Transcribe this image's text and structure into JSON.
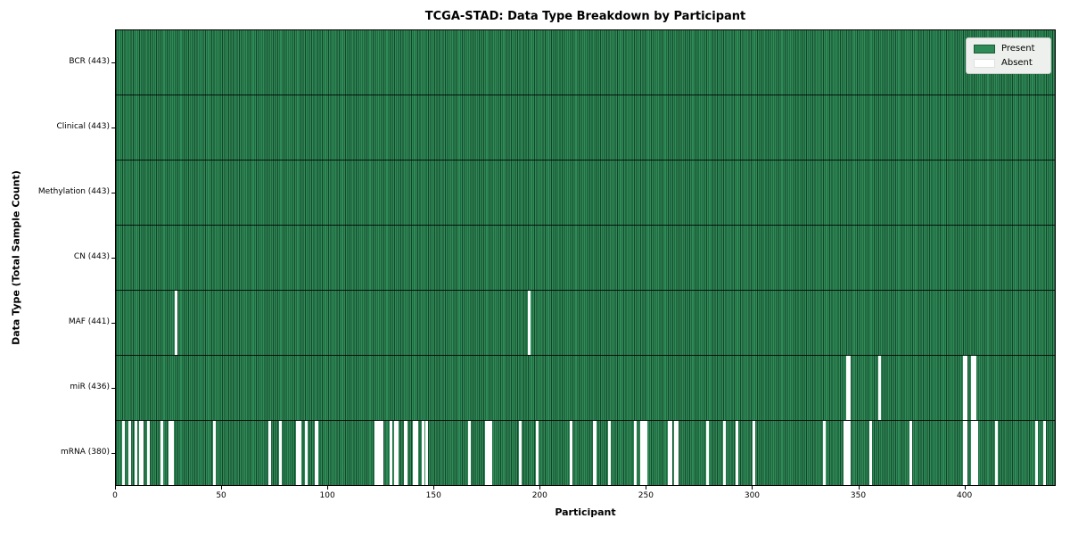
{
  "title": "TCGA-STAD: Data Type Breakdown by Participant",
  "legend": {
    "present_label": "Present",
    "absent_label": "Absent"
  },
  "colors": {
    "present": "#2e8b57",
    "absent": "#ffffff",
    "cell_edge": "rgba(0,0,0,0.5)",
    "row_border": "#000000",
    "plot_border": "#000000",
    "legend_bg": "#edf0ec",
    "text": "#000000"
  },
  "chart_data": {
    "type": "heatmap",
    "title": "TCGA-STAD: Data Type Breakdown by Participant",
    "xlabel": "Participant",
    "ylabel": "Data Type (Total Sample Count)",
    "x_range": [
      0,
      443
    ],
    "n_participants": 443,
    "x_ticks": [
      0,
      50,
      100,
      150,
      200,
      250,
      300,
      350,
      400
    ],
    "grid": false,
    "legend_position": "upper right",
    "legend_entries": [
      {
        "label": "Present",
        "color": "#2e8b57"
      },
      {
        "label": "Absent",
        "color": "#ffffff"
      }
    ],
    "rows": [
      {
        "label": "BCR (443)",
        "data_type": "BCR",
        "present_count": 443,
        "absent_participants": []
      },
      {
        "label": "Clinical (443)",
        "data_type": "Clinical",
        "present_count": 443,
        "absent_participants": []
      },
      {
        "label": "Methylation (443)",
        "data_type": "Methylation",
        "present_count": 443,
        "absent_participants": []
      },
      {
        "label": "CN (443)",
        "data_type": "CN",
        "present_count": 443,
        "absent_participants": []
      },
      {
        "label": "MAF (441)",
        "data_type": "MAF",
        "present_count": 441,
        "absent_participants": [
          28,
          194
        ]
      },
      {
        "label": "miR (436)",
        "data_type": "miR",
        "present_count": 436,
        "absent_participants": [
          344,
          345,
          359,
          399,
          400,
          403,
          404
        ]
      },
      {
        "label": "mRNA (380)",
        "data_type": "mRNA",
        "present_count": 380,
        "absent_participants": [
          3,
          6,
          9,
          11,
          12,
          15,
          21,
          25,
          26,
          46,
          72,
          77,
          85,
          86,
          89,
          94,
          122,
          123,
          124,
          125,
          129,
          131,
          132,
          136,
          140,
          141,
          144,
          146,
          166,
          174,
          175,
          176,
          190,
          198,
          214,
          225,
          232,
          244,
          247,
          248,
          249,
          260,
          261,
          263,
          264,
          278,
          286,
          292,
          300,
          333,
          343,
          344,
          345,
          355,
          374,
          399,
          400,
          403,
          404,
          405,
          414,
          433,
          437
        ]
      }
    ]
  }
}
